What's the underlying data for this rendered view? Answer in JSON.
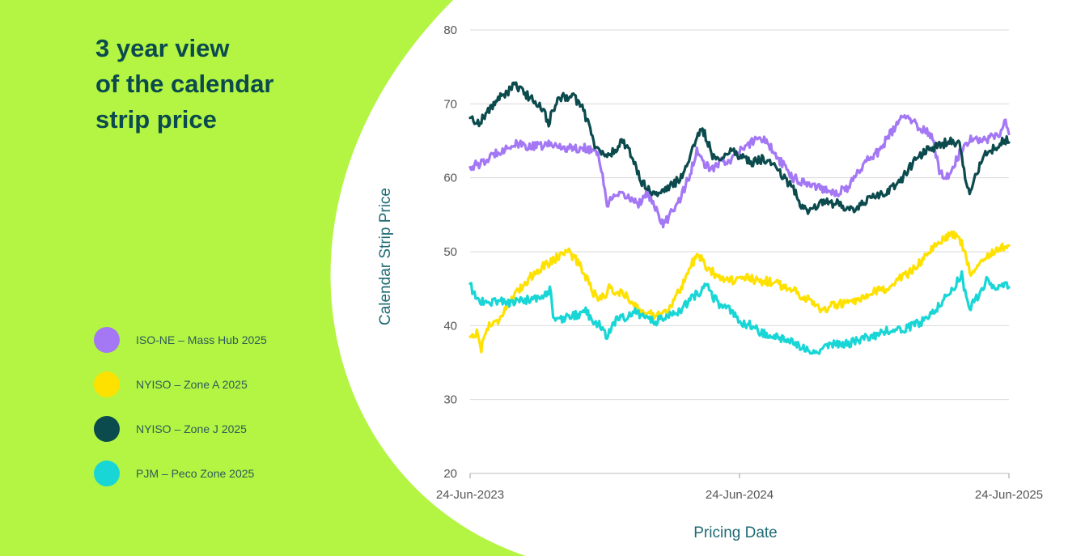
{
  "title_lines": [
    "3 year view",
    "of the calendar",
    "strip price"
  ],
  "colors": {
    "background_green": "#b3f542",
    "panel_white": "#ffffff",
    "title_text": "#0b4a4d",
    "axis_text": "#555555",
    "axis_title": "#1e6b74",
    "grid": "#d9d9d9"
  },
  "legend": [
    {
      "label": "ISO-NE – Mass Hub 2025",
      "color": "#a477f5"
    },
    {
      "label": "NYISO – Zone A 2025",
      "color": "#ffe100"
    },
    {
      "label": "NYISO – Zone J 2025",
      "color": "#0b4a4d"
    },
    {
      "label": "PJM – Peco Zone 2025",
      "color": "#19d6d6"
    }
  ],
  "chart_data": {
    "type": "line",
    "title": "3 year view of the calendar strip price",
    "xlabel": "Pricing Date",
    "ylabel": "Calendar Strip Price",
    "ylim": [
      20,
      80
    ],
    "yticks": [
      20,
      30,
      40,
      50,
      60,
      70,
      80
    ],
    "xticks": [
      "24-Jun-2023",
      "24-Jun-2024",
      "24-Jun-2025"
    ],
    "x_unit": "months since 24-Jun-2023",
    "xlim": [
      0,
      24
    ],
    "grid": true,
    "series": [
      {
        "name": "ISO-NE – Mass Hub 2025",
        "color": "#a477f5",
        "points": [
          [
            0,
            61.5
          ],
          [
            0.6,
            62.0
          ],
          [
            1.2,
            63.5
          ],
          [
            2.0,
            64.5
          ],
          [
            2.8,
            64.2
          ],
          [
            3.6,
            64.5
          ],
          [
            4.4,
            64.0
          ],
          [
            5.2,
            64.0
          ],
          [
            5.7,
            63.5
          ],
          [
            5.9,
            60.0
          ],
          [
            6.1,
            56.5
          ],
          [
            6.5,
            57.5
          ],
          [
            7.0,
            57.5
          ],
          [
            7.5,
            56.5
          ],
          [
            7.9,
            58.0
          ],
          [
            8.3,
            55.5
          ],
          [
            8.6,
            53.5
          ],
          [
            9.0,
            55.5
          ],
          [
            9.4,
            57.5
          ],
          [
            9.8,
            60.5
          ],
          [
            10.1,
            63.5
          ],
          [
            10.4,
            62.0
          ],
          [
            10.7,
            61.0
          ],
          [
            11.1,
            62.0
          ],
          [
            11.6,
            62.5
          ],
          [
            12.0,
            63.5
          ],
          [
            12.4,
            64.5
          ],
          [
            12.8,
            65.5
          ],
          [
            13.2,
            65.0
          ],
          [
            13.6,
            63.0
          ],
          [
            14.0,
            61.5
          ],
          [
            14.4,
            60.0
          ],
          [
            14.8,
            59.5
          ],
          [
            15.3,
            59.0
          ],
          [
            15.8,
            58.5
          ],
          [
            16.3,
            58.0
          ],
          [
            16.8,
            58.5
          ],
          [
            17.2,
            60.5
          ],
          [
            17.7,
            62.5
          ],
          [
            18.2,
            63.5
          ],
          [
            18.6,
            65.5
          ],
          [
            19.0,
            67.0
          ],
          [
            19.3,
            68.5
          ],
          [
            19.7,
            67.5
          ],
          [
            20.2,
            66.5
          ],
          [
            20.6,
            65.5
          ],
          [
            20.9,
            61.0
          ],
          [
            21.2,
            60.0
          ],
          [
            21.6,
            62.0
          ],
          [
            22.0,
            64.5
          ],
          [
            22.4,
            65.5
          ],
          [
            22.8,
            65.0
          ],
          [
            23.2,
            65.5
          ],
          [
            23.6,
            66.0
          ],
          [
            23.8,
            68.0
          ],
          [
            24,
            66.0
          ]
        ]
      },
      {
        "name": "NYISO – Zone A 2025",
        "color": "#ffe100",
        "points": [
          [
            0,
            38.5
          ],
          [
            0.3,
            39.0
          ],
          [
            0.5,
            37.0
          ],
          [
            0.8,
            40.0
          ],
          [
            1.2,
            40.5
          ],
          [
            1.6,
            42.5
          ],
          [
            2.0,
            44.0
          ],
          [
            2.5,
            46.0
          ],
          [
            3.0,
            47.5
          ],
          [
            3.5,
            48.5
          ],
          [
            4.0,
            49.5
          ],
          [
            4.3,
            50.3
          ],
          [
            4.7,
            49.0
          ],
          [
            5.1,
            47.0
          ],
          [
            5.5,
            44.5
          ],
          [
            5.8,
            43.5
          ],
          [
            6.2,
            45.0
          ],
          [
            6.6,
            44.5
          ],
          [
            7.0,
            44.0
          ],
          [
            7.4,
            42.5
          ],
          [
            7.8,
            41.5
          ],
          [
            8.3,
            41.5
          ],
          [
            8.8,
            42.0
          ],
          [
            9.2,
            44.0
          ],
          [
            9.6,
            46.5
          ],
          [
            9.9,
            48.5
          ],
          [
            10.2,
            49.5
          ],
          [
            10.5,
            48.0
          ],
          [
            10.9,
            47.0
          ],
          [
            11.3,
            46.5
          ],
          [
            11.8,
            46.0
          ],
          [
            12.3,
            46.5
          ],
          [
            12.8,
            46.0
          ],
          [
            13.3,
            46.0
          ],
          [
            13.8,
            45.5
          ],
          [
            14.3,
            45.0
          ],
          [
            14.8,
            44.0
          ],
          [
            15.2,
            43.5
          ],
          [
            15.6,
            42.0
          ],
          [
            16.0,
            42.5
          ],
          [
            16.5,
            43.0
          ],
          [
            17.0,
            43.0
          ],
          [
            17.5,
            43.5
          ],
          [
            18.0,
            44.5
          ],
          [
            18.5,
            45.0
          ],
          [
            19.0,
            46.0
          ],
          [
            19.5,
            47.0
          ],
          [
            20.0,
            48.5
          ],
          [
            20.5,
            50.0
          ],
          [
            21.0,
            51.5
          ],
          [
            21.4,
            52.5
          ],
          [
            21.8,
            52.0
          ],
          [
            22.1,
            49.0
          ],
          [
            22.3,
            47.0
          ],
          [
            22.6,
            48.5
          ],
          [
            23.0,
            49.5
          ],
          [
            23.4,
            50.0
          ],
          [
            23.7,
            50.5
          ],
          [
            24,
            51.0
          ]
        ]
      },
      {
        "name": "NYISO – Zone J 2025",
        "color": "#0b4a4d",
        "points": [
          [
            0,
            68.0
          ],
          [
            0.4,
            67.5
          ],
          [
            0.8,
            69.0
          ],
          [
            1.2,
            70.5
          ],
          [
            1.6,
            71.5
          ],
          [
            2.0,
            72.5
          ],
          [
            2.4,
            71.5
          ],
          [
            2.8,
            70.5
          ],
          [
            3.2,
            69.5
          ],
          [
            3.5,
            67.5
          ],
          [
            3.8,
            70.0
          ],
          [
            4.2,
            71.0
          ],
          [
            4.6,
            71.0
          ],
          [
            5.0,
            69.5
          ],
          [
            5.3,
            67.0
          ],
          [
            5.6,
            64.0
          ],
          [
            6.0,
            63.0
          ],
          [
            6.4,
            63.5
          ],
          [
            6.8,
            65.0
          ],
          [
            7.2,
            63.0
          ],
          [
            7.6,
            59.5
          ],
          [
            8.0,
            58.5
          ],
          [
            8.4,
            57.5
          ],
          [
            8.8,
            58.5
          ],
          [
            9.2,
            59.5
          ],
          [
            9.5,
            60.5
          ],
          [
            9.8,
            63.0
          ],
          [
            10.1,
            65.0
          ],
          [
            10.3,
            67.0
          ],
          [
            10.5,
            65.5
          ],
          [
            10.8,
            63.0
          ],
          [
            11.2,
            62.5
          ],
          [
            11.6,
            64.0
          ],
          [
            12.0,
            63.0
          ],
          [
            12.5,
            62.0
          ],
          [
            13.0,
            62.5
          ],
          [
            13.5,
            62.0
          ],
          [
            14.0,
            60.0
          ],
          [
            14.5,
            58.0
          ],
          [
            14.8,
            56.0
          ],
          [
            15.2,
            55.5
          ],
          [
            15.6,
            57.0
          ],
          [
            16.0,
            56.5
          ],
          [
            16.5,
            56.5
          ],
          [
            17.0,
            55.5
          ],
          [
            17.5,
            56.5
          ],
          [
            18.0,
            57.5
          ],
          [
            18.5,
            58.0
          ],
          [
            19.0,
            59.0
          ],
          [
            19.5,
            61.0
          ],
          [
            20.0,
            63.0
          ],
          [
            20.5,
            64.0
          ],
          [
            21.0,
            64.5
          ],
          [
            21.4,
            65.0
          ],
          [
            21.8,
            64.5
          ],
          [
            22.1,
            59.0
          ],
          [
            22.3,
            58.0
          ],
          [
            22.6,
            61.0
          ],
          [
            23.0,
            63.5
          ],
          [
            23.4,
            64.0
          ],
          [
            23.7,
            65.0
          ],
          [
            24,
            65.0
          ]
        ]
      },
      {
        "name": "PJM – Peco Zone 2025",
        "color": "#19d6d6",
        "points": [
          [
            0,
            45.5
          ],
          [
            0.3,
            43.5
          ],
          [
            0.8,
            43.0
          ],
          [
            1.3,
            43.5
          ],
          [
            1.8,
            43.0
          ],
          [
            2.3,
            43.5
          ],
          [
            2.8,
            43.5
          ],
          [
            3.3,
            44.0
          ],
          [
            3.6,
            45.0
          ],
          [
            3.7,
            40.5
          ],
          [
            4.2,
            41.0
          ],
          [
            4.8,
            41.5
          ],
          [
            5.1,
            42.0
          ],
          [
            5.4,
            41.0
          ],
          [
            5.8,
            40.0
          ],
          [
            6.1,
            38.5
          ],
          [
            6.4,
            40.5
          ],
          [
            6.8,
            41.0
          ],
          [
            7.3,
            42.0
          ],
          [
            7.8,
            41.0
          ],
          [
            8.3,
            40.5
          ],
          [
            8.8,
            41.5
          ],
          [
            9.3,
            42.0
          ],
          [
            9.8,
            43.5
          ],
          [
            10.2,
            44.5
          ],
          [
            10.5,
            46.0
          ],
          [
            10.8,
            44.0
          ],
          [
            11.2,
            42.5
          ],
          [
            11.6,
            42.0
          ],
          [
            12.0,
            40.5
          ],
          [
            12.5,
            40.0
          ],
          [
            13.0,
            39.0
          ],
          [
            13.5,
            38.5
          ],
          [
            14.0,
            38.0
          ],
          [
            14.5,
            37.5
          ],
          [
            15.0,
            37.0
          ],
          [
            15.4,
            36.5
          ],
          [
            15.8,
            37.0
          ],
          [
            16.3,
            37.5
          ],
          [
            16.8,
            37.5
          ],
          [
            17.3,
            38.0
          ],
          [
            17.8,
            38.5
          ],
          [
            18.3,
            39.0
          ],
          [
            18.8,
            39.5
          ],
          [
            19.3,
            39.5
          ],
          [
            19.8,
            40.0
          ],
          [
            20.3,
            41.0
          ],
          [
            20.8,
            42.5
          ],
          [
            21.2,
            44.0
          ],
          [
            21.6,
            45.5
          ],
          [
            21.9,
            47.0
          ],
          [
            22.1,
            43.5
          ],
          [
            22.3,
            42.5
          ],
          [
            22.7,
            44.5
          ],
          [
            23.0,
            46.0
          ],
          [
            23.4,
            45.0
          ],
          [
            23.7,
            45.5
          ],
          [
            24,
            45.5
          ]
        ]
      }
    ]
  }
}
